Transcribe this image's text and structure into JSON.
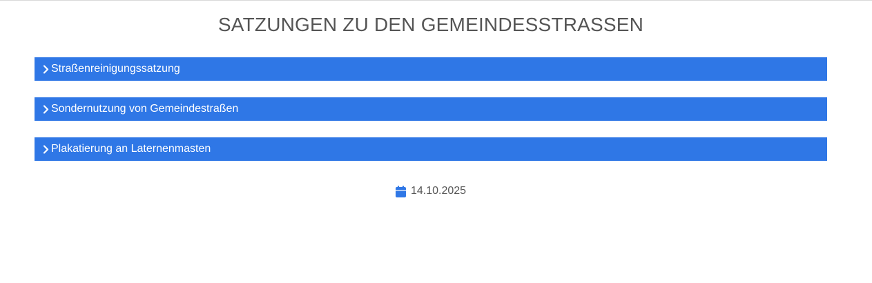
{
  "page": {
    "title": "SATZUNGEN ZU DEN GEMEINDESSTRASSEN",
    "accent_color": "#2f77e6",
    "text_color": "#555555"
  },
  "accordion": {
    "items": [
      {
        "label": "Straßenreinigungssatzung",
        "icon": "chevron-right-icon"
      },
      {
        "label": "Sondernutzung von Gemeindestraßen",
        "icon": "chevron-right-icon"
      },
      {
        "label": "Plakatierung an Laternenmasten",
        "icon": "chevron-right-icon"
      }
    ]
  },
  "meta": {
    "date": "14.10.2025",
    "date_icon": "calendar-icon"
  }
}
